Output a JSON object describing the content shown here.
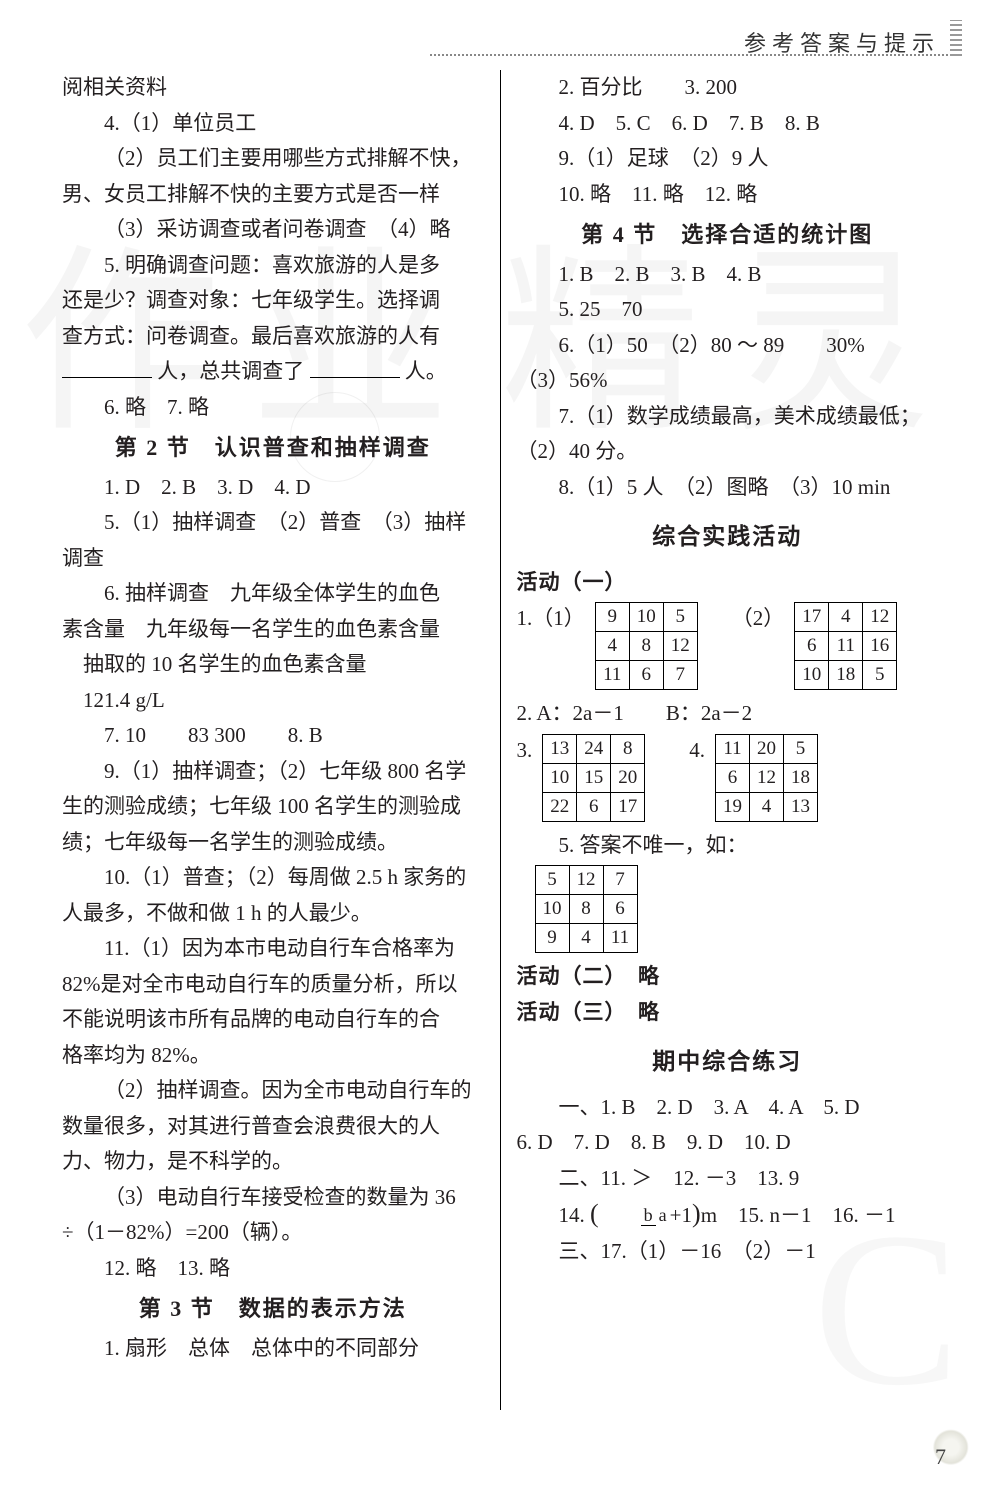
{
  "header": {
    "title": "参考答案与提示"
  },
  "page_number": "7",
  "watermark": {
    "left": "作业",
    "right": "精灵",
    "corner": "C"
  },
  "left": {
    "l00": "阅相关资料",
    "l01": "4.（1）单位员工",
    "l02": "（2）员工们主要用哪些方式排解不快，",
    "l02b": "男、女员工排解不快的主要方式是否一样",
    "l03": "（3）采访调查或者问卷调查　（4）略",
    "l04": "5. 明确调查问题：喜欢旅游的人是多",
    "l04b": "还是少？调查对象：七年级学生。选择调",
    "l04c": "查方式：问卷调查。最后喜欢旅游的人有",
    "l04d_a": "人，总共调查了",
    "l04d_b": "人。",
    "l05": "6. 略　7. 略",
    "sect2": "第 2 节　认识普查和抽样调查",
    "l06": "1. D　2. B　3. D　4. D",
    "l07": "5.（1）抽样调查　（2）普查　（3）抽样",
    "l07b": "调查",
    "l08": "6. 抽样调查　九年级全体学生的血色",
    "l08b": "素含量　九年级每一名学生的血色素含量",
    "l08c": "　抽取的 10 名学生的血色素含量",
    "l08d": "　121.4 g/L",
    "l09": "7. 10　　83 300　　8. B",
    "l10": "9.（1）抽样调查；（2）七年级 800 名学",
    "l10b": "生的测验成绩；七年级 100 名学生的测验成",
    "l10c": "绩；七年级每一名学生的测验成绩。",
    "l11": "10.（1）普查；（2）每周做 2.5 h 家务的",
    "l11b": "人最多，不做和做 1 h 的人最少。",
    "l12": "11.（1）因为本市电动自行车合格率为",
    "l12b": "82%是对全市电动自行车的质量分析，所以",
    "l12c": "不能说明该市所有品牌的电动自行车的合",
    "l12d": "格率均为 82%。",
    "l13": "（2）抽样调查。因为全市电动自行车的",
    "l13b": "数量很多，对其进行普查会浪费很大的人",
    "l13c": "力、物力，是不科学的。",
    "l14": "（3）电动自行车接受检查的数量为 36",
    "l14b": "÷（1－82%）=200（辆）。",
    "l15": "12. 略　13. 略",
    "sect3": "第 3 节　数据的表示方法",
    "l16": "1. 扇形　总体　总体中的不同部分"
  },
  "right": {
    "r00": "2. 百分比　　3. 200",
    "r01": "4. D　5. C　6. D　7. B　8. B",
    "r02": "9.（1）足球　（2）9 人",
    "r03": "10. 略　11. 略　12. 略",
    "sect4": "第 4 节　选择合适的统计图",
    "r04": "1. B　2. B　3. B　4. B",
    "r05": "5. 25　70",
    "r06": "6.（1）50　（2）80 ～ 89　　30%",
    "r06b": "（3）56%",
    "r07": "7.（1）数学成绩最高，美术成绩最低；",
    "r07b": "（2）40 分。",
    "r08": "8.（1）5 人　（2）图略　（3）10 min",
    "sect_practice": "综合实践活动",
    "act1": "活动（一）",
    "q1_lbl1": "1.（1）",
    "q1_lbl2": "（2）",
    "t1": [
      [
        "9",
        "10",
        "5"
      ],
      [
        "4",
        "8",
        "12"
      ],
      [
        "11",
        "6",
        "7"
      ]
    ],
    "t2": [
      [
        "17",
        "4",
        "12"
      ],
      [
        "6",
        "11",
        "16"
      ],
      [
        "10",
        "18",
        "5"
      ]
    ],
    "q2": "2. A：2a－1　　B：2a－2",
    "q3_lbl": "3.",
    "q4_lbl": "4.",
    "t3": [
      [
        "13",
        "24",
        "8"
      ],
      [
        "10",
        "15",
        "20"
      ],
      [
        "22",
        "6",
        "17"
      ]
    ],
    "t4": [
      [
        "11",
        "20",
        "5"
      ],
      [
        "6",
        "12",
        "18"
      ],
      [
        "19",
        "4",
        "13"
      ]
    ],
    "q5": "5. 答案不唯一，如：",
    "t5": [
      [
        "5",
        "12",
        "7"
      ],
      [
        "10",
        "8",
        "6"
      ],
      [
        "9",
        "4",
        "11"
      ]
    ],
    "act2": "活动（二）　略",
    "act3": "活动（三）　略",
    "sect_mid": "期中综合练习",
    "m1": "一、1. B　2. D　3. A　4. A　5. D",
    "m1b": "6. D　7. D　8. B　9. D　10. D",
    "m2": "二、11. ＞　12. －3　13. 9",
    "m3a": "14. ",
    "m3b": "m　15. n－1　16. －1",
    "frac_n": "b",
    "frac_d": "a",
    "frac_plus": "+1",
    "m4": "三、17.（1）－16　（2）－1"
  }
}
